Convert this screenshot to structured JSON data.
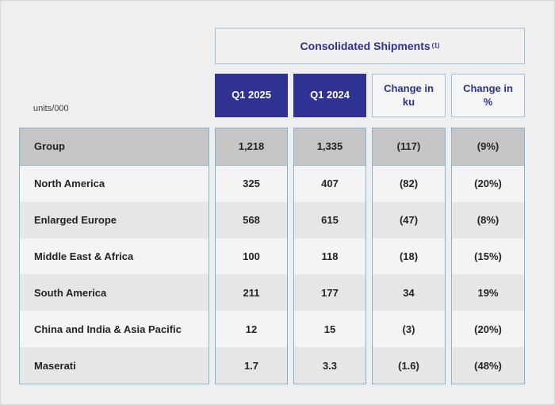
{
  "chart_data": {
    "type": "table",
    "title": "Consolidated Shipments",
    "title_footnote": "(1)",
    "units_note": "units/000",
    "columns": [
      "Q1 2025",
      "Q1 2024",
      "Change in ku",
      "Change in %"
    ],
    "rows": [
      {
        "label": "Group",
        "values": [
          "1,218",
          "1,335",
          "(117)",
          "(9%)"
        ]
      },
      {
        "label": "North America",
        "values": [
          "325",
          "407",
          "(82)",
          "(20%)"
        ]
      },
      {
        "label": "Enlarged Europe",
        "values": [
          "568",
          "615",
          "(47)",
          "(8%)"
        ]
      },
      {
        "label": "Middle East & Africa",
        "values": [
          "100",
          "118",
          "(18)",
          "(15%)"
        ]
      },
      {
        "label": "South America",
        "values": [
          "211",
          "177",
          "34",
          "19%"
        ]
      },
      {
        "label": "China and India & Asia Pacific",
        "values": [
          "12",
          "15",
          "(3)",
          "(20%)"
        ]
      },
      {
        "label": "Maserati",
        "values": [
          "1.7",
          "3.3",
          "(1.6)",
          "(48%)"
        ]
      }
    ],
    "layout_hints": {
      "summary_row": "Group",
      "striping": "alternating light/dark below summary row"
    },
    "colors": {
      "accent_blue": "#2f3193",
      "border_blue": "#84b4d9",
      "summary_row_gray": "#c4c5c4",
      "stripe_light": "#f4f4f5",
      "stripe_dark": "#e6e6e7",
      "page_background": "#efeff0"
    }
  }
}
